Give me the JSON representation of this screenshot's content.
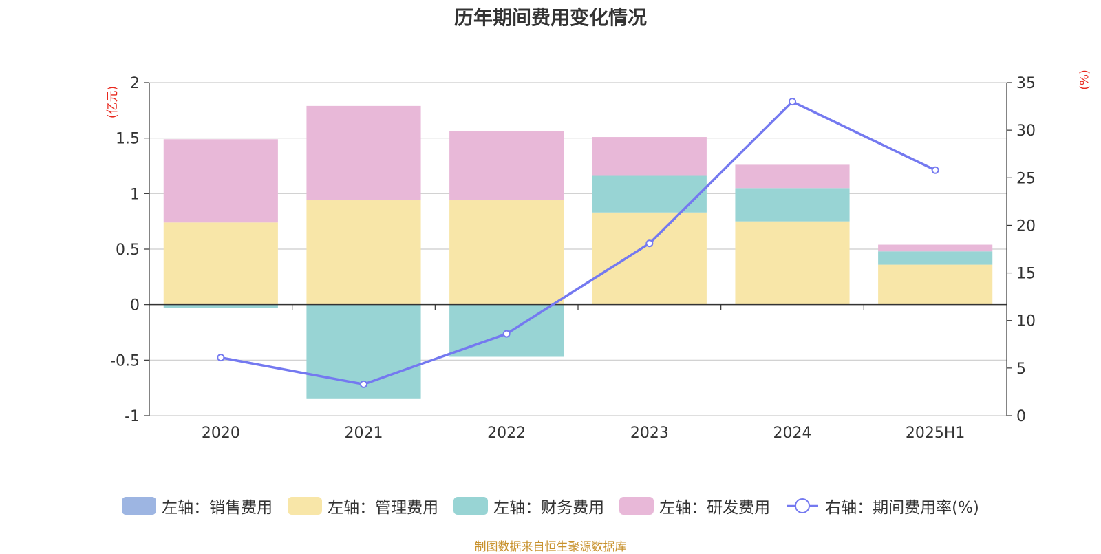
{
  "title": "历年期间费用变化情况",
  "left_unit": "(亿元)",
  "right_unit": "(%)",
  "source": "制图数据来自恒生聚源数据库",
  "chart_data": {
    "type": "bar",
    "stacked": true,
    "title": "历年期间费用变化情况",
    "categories": [
      "2020",
      "2021",
      "2022",
      "2023",
      "2024",
      "2025H1"
    ],
    "left_axis": {
      "unit": "(亿元)",
      "ylim": [
        -1,
        2
      ],
      "ticks": [
        "-1",
        "-0.5",
        "0",
        "0.5",
        "1",
        "1.5",
        "2"
      ]
    },
    "right_axis": {
      "unit": "(%)",
      "ylim": [
        0,
        35
      ],
      "ticks": [
        "0",
        "5",
        "10",
        "15",
        "20",
        "25",
        "30",
        "35"
      ]
    },
    "series": [
      {
        "name": "左轴：销售费用",
        "type": "bar",
        "axis": "left",
        "color": "#9db5e2",
        "values": [
          0,
          0,
          0,
          0,
          0,
          0
        ]
      },
      {
        "name": "左轴：管理费用",
        "type": "bar",
        "axis": "left",
        "color": "#f8e6a8",
        "values": [
          0.74,
          0.94,
          0.94,
          0.83,
          0.75,
          0.36
        ]
      },
      {
        "name": "左轴：财务费用",
        "type": "bar",
        "axis": "left",
        "color": "#98d4d4",
        "values": [
          -0.03,
          -0.85,
          -0.47,
          0.33,
          0.3,
          0.12
        ]
      },
      {
        "name": "左轴：研发费用",
        "type": "bar",
        "axis": "left",
        "color": "#e8b8d8",
        "values": [
          0.75,
          0.85,
          0.62,
          0.35,
          0.21,
          0.06
        ]
      },
      {
        "name": "右轴：期间费用率(%)",
        "type": "line",
        "axis": "right",
        "color": "#7479f0",
        "values": [
          6.1,
          3.3,
          8.6,
          18.1,
          33.0,
          25.8
        ]
      }
    ],
    "grid": true,
    "legend_position": "bottom"
  }
}
